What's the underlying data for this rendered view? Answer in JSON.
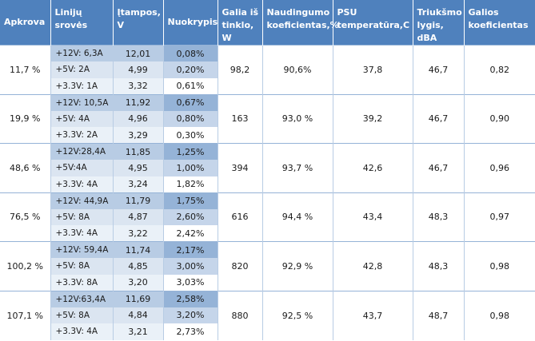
{
  "headers": {
    "load": "Apkrova",
    "line_currents": "Linijų srovės",
    "voltages": "Įtampos, V",
    "deviation": "Nuokrypis",
    "power": "Galia iš tinklo, W",
    "efficiency": "Naudingumo koeficientas,%",
    "psu_temp": "PSU temperatūra,C",
    "noise": "Triukšmo lygis, dBA",
    "power_factor": "Galios koeficientas"
  },
  "rows": [
    {
      "load": "11,7 %",
      "power": "98,2",
      "efficiency": "90,6%",
      "psu_temp": "37,8",
      "noise": "46,7",
      "power_factor": "0,82",
      "lines": [
        {
          "current": "+12V: 6,3A",
          "voltage": "12,01",
          "deviation": "0,08%"
        },
        {
          "current": "+5V: 2A",
          "voltage": "4,99",
          "deviation": "0,20%"
        },
        {
          "current": "+3.3V: 1A",
          "voltage": "3,32",
          "deviation": "0,61%"
        }
      ]
    },
    {
      "load": "19,9 %",
      "power": "163",
      "efficiency": "93,0 %",
      "psu_temp": "39,2",
      "noise": "46,7",
      "power_factor": "0,90",
      "lines": [
        {
          "current": "+12V: 10,5A",
          "voltage": "11,92",
          "deviation": "0,67%"
        },
        {
          "current": "+5V: 4A",
          "voltage": "4,96",
          "deviation": "0,80%"
        },
        {
          "current": "+3.3V: 2A",
          "voltage": "3,29",
          "deviation": "0,30%"
        }
      ]
    },
    {
      "load": "48,6 %",
      "power": "394",
      "efficiency": "93,7 %",
      "psu_temp": "42,6",
      "noise": "46,7",
      "power_factor": "0,96",
      "lines": [
        {
          "current": "+12V:28,4A",
          "voltage": "11,85",
          "deviation": "1,25%"
        },
        {
          "current": "+5V:4A",
          "voltage": "4,95",
          "deviation": "1,00%"
        },
        {
          "current": "+3.3V: 4A",
          "voltage": "3,24",
          "deviation": "1,82%"
        }
      ]
    },
    {
      "load": "76,5 %",
      "power": "616",
      "efficiency": "94,4 %",
      "psu_temp": "43,4",
      "noise": "48,3",
      "power_factor": "0,97",
      "lines": [
        {
          "current": "+12V: 44,9A",
          "voltage": "11,79",
          "deviation": "1,75%"
        },
        {
          "current": "+5V: 8A",
          "voltage": "4,87",
          "deviation": "2,60%"
        },
        {
          "current": "+3.3V: 4A",
          "voltage": "3,22",
          "deviation": "2,42%"
        }
      ]
    },
    {
      "load": "100,2 %",
      "power": "820",
      "efficiency": "92,9 %",
      "psu_temp": "42,8",
      "noise": "48,3",
      "power_factor": "0,98",
      "lines": [
        {
          "current": "+12V: 59,4A",
          "voltage": "11,74",
          "deviation": "2,17%"
        },
        {
          "current": "+5V: 8A",
          "voltage": "4,85",
          "deviation": "3,00%"
        },
        {
          "current": "+3.3V: 8A",
          "voltage": "3,20",
          "deviation": "3,03%"
        }
      ]
    },
    {
      "load": "107,1 %",
      "power": "880",
      "efficiency": "92,5 %",
      "psu_temp": "43,7",
      "noise": "48,7",
      "power_factor": "0,98",
      "lines": [
        {
          "current": "+12V:63,4A",
          "voltage": "11,69",
          "deviation": "2,58%"
        },
        {
          "current": "+5V: 8A",
          "voltage": "4,84",
          "deviation": "3,20%"
        },
        {
          "current": "+3.3V: 4A",
          "voltage": "3,21",
          "deviation": "2,73%"
        }
      ]
    }
  ]
}
